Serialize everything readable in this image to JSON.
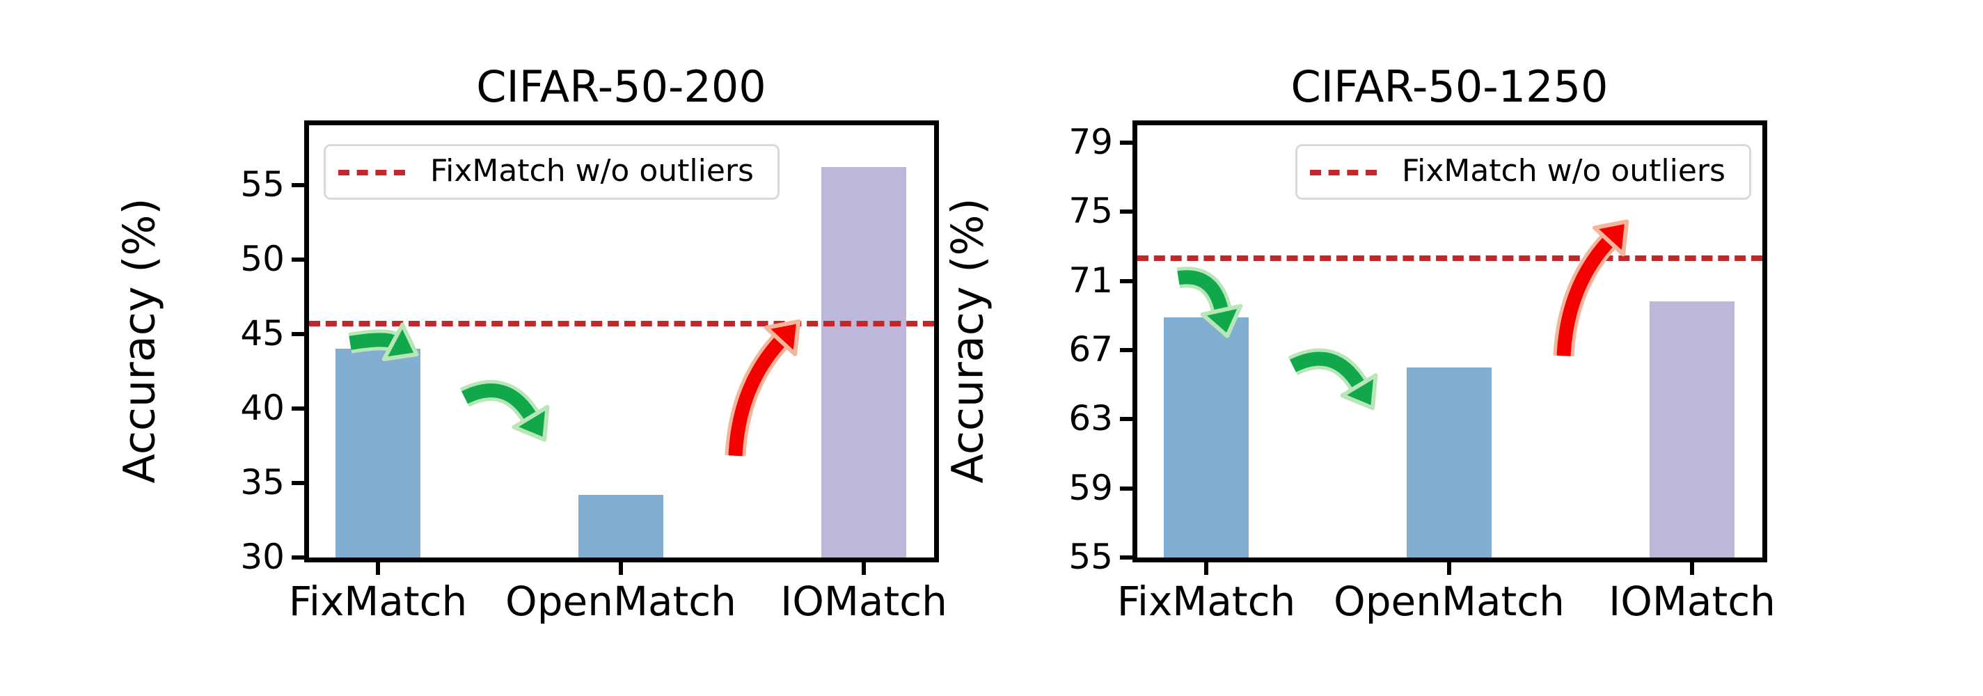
{
  "chart_data": [
    {
      "type": "bar",
      "title": "CIFAR-50-200",
      "xlabel": "",
      "ylabel": "Accuracy (%)",
      "categories": [
        "FixMatch",
        "OpenMatch",
        "IOMatch"
      ],
      "values": [
        44.0,
        34.2,
        56.2
      ],
      "bar_colors": [
        "#82AED2",
        "#82AED2",
        "#BDB7DA"
      ],
      "ylim": [
        30,
        59
      ],
      "yticks": [
        30,
        35,
        40,
        45,
        50,
        55
      ],
      "grid": false,
      "reference_line": {
        "label": "FixMatch w/o outliers",
        "value": 45.7,
        "style": "dashed",
        "color": "#C0282A"
      },
      "legend": {
        "position": "upper left",
        "entries": [
          "FixMatch w/o outliers"
        ]
      },
      "annotations": [
        {
          "type": "arrow",
          "direction": "down",
          "color": "#10A84A",
          "from": "reference line",
          "to": "FixMatch"
        },
        {
          "type": "arrow",
          "direction": "down",
          "color": "#10A84A",
          "from": "FixMatch",
          "to": "OpenMatch"
        },
        {
          "type": "arrow",
          "direction": "up",
          "color": "#F40000",
          "from": "OpenMatch",
          "to": "IOMatch"
        }
      ]
    },
    {
      "type": "bar",
      "title": "CIFAR-50-1250",
      "xlabel": "",
      "ylabel": "Accuracy (%)",
      "categories": [
        "FixMatch",
        "OpenMatch",
        "IOMatch"
      ],
      "values": [
        68.9,
        66.0,
        69.8
      ],
      "bar_colors": [
        "#82AED2",
        "#82AED2",
        "#BDB7DA"
      ],
      "ylim": [
        55,
        80
      ],
      "yticks": [
        55,
        59,
        63,
        67,
        71,
        75,
        79
      ],
      "grid": false,
      "reference_line": {
        "label": "FixMatch w/o outliers",
        "value": 72.3,
        "style": "dashed",
        "color": "#C0282A"
      },
      "legend": {
        "position": "upper right",
        "entries": [
          "FixMatch w/o outliers"
        ]
      },
      "annotations": [
        {
          "type": "arrow",
          "direction": "down",
          "color": "#10A84A",
          "from": "reference line",
          "to": "FixMatch"
        },
        {
          "type": "arrow",
          "direction": "down",
          "color": "#10A84A",
          "from": "FixMatch",
          "to": "OpenMatch"
        },
        {
          "type": "arrow",
          "direction": "up",
          "color": "#F40000",
          "from": "OpenMatch",
          "to": "IOMatch"
        }
      ]
    }
  ],
  "panels": [
    {
      "title": "CIFAR-50-200",
      "ylabel": "Accuracy (%)",
      "legend_label": "FixMatch w/o outliers",
      "xticks": [
        "FixMatch",
        "OpenMatch",
        "IOMatch"
      ],
      "yticks": [
        "30",
        "35",
        "40",
        "45",
        "50",
        "55"
      ]
    },
    {
      "title": "CIFAR-50-1250",
      "ylabel": "Accuracy (%)",
      "legend_label": "FixMatch w/o outliers",
      "xticks": [
        "FixMatch",
        "OpenMatch",
        "IOMatch"
      ],
      "yticks": [
        "55",
        "59",
        "63",
        "67",
        "71",
        "75",
        "79"
      ]
    }
  ]
}
